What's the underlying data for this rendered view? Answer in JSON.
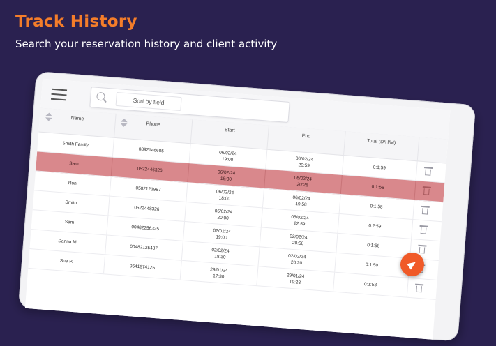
{
  "hero": {
    "title": "Track History",
    "subtitle": "Search your reservation history and client activity"
  },
  "search": {
    "sort_field": "Sort by field"
  },
  "table": {
    "headers": [
      "Name",
      "Phone",
      "Start",
      "End",
      "Total (D/H/M)"
    ],
    "rows": [
      {
        "name": "Smith Family",
        "phone": "0892146685",
        "start_date": "06/02/24",
        "start_time": "19:00",
        "end_date": "06/02/24",
        "end_time": "20:59",
        "total": "0:1:59",
        "highlight": false
      },
      {
        "name": "Sam",
        "phone": "0522446326",
        "start_date": "06/02/24",
        "start_time": "18:30",
        "end_date": "06/02/24",
        "end_time": "20:28",
        "total": "0:1:58",
        "highlight": true
      },
      {
        "name": "Ron",
        "phone": "0502123987",
        "start_date": "06/02/24",
        "start_time": "18:00",
        "end_date": "06/02/24",
        "end_time": "19:58",
        "total": "0:1:58",
        "highlight": false
      },
      {
        "name": "Smith",
        "phone": "0522448326",
        "start_date": "05/02/24",
        "start_time": "20:00",
        "end_date": "05/02/24",
        "end_time": "22:59",
        "total": "0:2:59",
        "highlight": false
      },
      {
        "name": "Sam",
        "phone": "00482256325",
        "start_date": "02/02/24",
        "start_time": "19:00",
        "end_date": "02/02/24",
        "end_time": "20:58",
        "total": "0:1:58",
        "highlight": false
      },
      {
        "name": "Danna M.",
        "phone": "00482125487",
        "start_date": "02/02/24",
        "start_time": "18:30",
        "end_date": "02/02/24",
        "end_time": "20:20",
        "total": "0:1:50",
        "highlight": false
      },
      {
        "name": "Sue P.",
        "phone": "0541874125",
        "start_date": "29/01/24",
        "start_time": "17:30",
        "end_date": "29/01/24",
        "end_time": "19:28",
        "total": "0:1:58",
        "highlight": false
      }
    ]
  },
  "colors": {
    "background": "#2a2150",
    "accent_title": "#f47d2a",
    "highlight_row": "#d9888c",
    "fab": "#f05a28"
  },
  "icons": {
    "menu": "hamburger-menu-icon",
    "search": "search-icon",
    "sort": "sort-arrows-icon",
    "delete": "trash-icon",
    "fab": "send-icon"
  }
}
